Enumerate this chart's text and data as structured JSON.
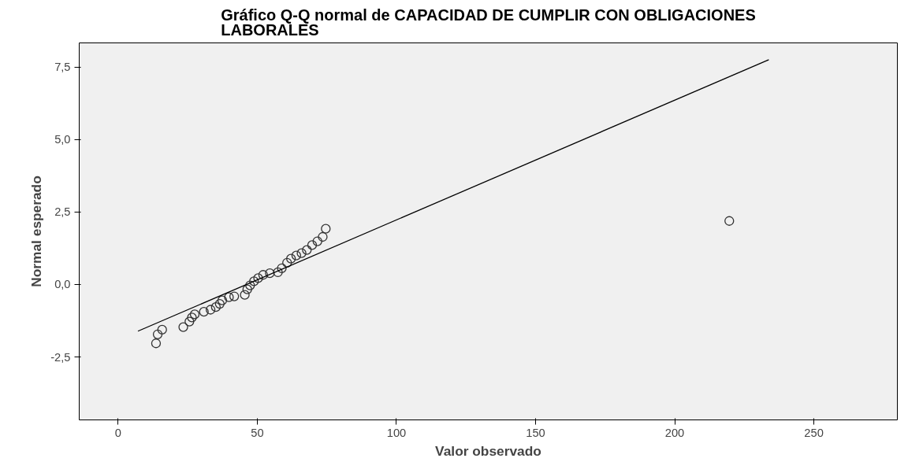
{
  "chart_data": {
    "type": "scatter",
    "title": "Gráfico Q-Q normal de CAPACIDAD DE CUMPLIR CON OBLIGACIONES\nLABORALES",
    "xlabel": "Valor observado",
    "ylabel": "Normal esperado",
    "grid": false,
    "xlim": [
      -14,
      280
    ],
    "ylim": [
      -4.67,
      8.33
    ],
    "xticks": [
      0,
      50,
      100,
      150,
      200,
      250
    ],
    "yticks": [
      {
        "value": -2.5,
        "label": "-2,5"
      },
      {
        "value": 0,
        "label": "0,0"
      },
      {
        "value": 2.5,
        "label": "2,5"
      },
      {
        "value": 5,
        "label": "5,0"
      },
      {
        "value": 7.5,
        "label": "7,5"
      }
    ],
    "series": [
      {
        "marker": "circle",
        "color": "#333333",
        "x": [
          13.6,
          14.2,
          15.8,
          23.4,
          25.6,
          26.5,
          27.5,
          30.8,
          33.2,
          35.1,
          36.5,
          37.4,
          39.8,
          41.7,
          45.5,
          46.4,
          47.4,
          48.8,
          50.3,
          52.1,
          54.5,
          57.4,
          58.8,
          60.7,
          62.1,
          64.0,
          65.9,
          67.8,
          69.7,
          71.6,
          73.5,
          74.6,
          219.6
        ],
        "values": [
          -2.03,
          -1.72,
          -1.56,
          -1.47,
          -1.28,
          -1.14,
          -1.03,
          -0.94,
          -0.87,
          -0.78,
          -0.67,
          -0.55,
          -0.44,
          -0.41,
          -0.36,
          -0.17,
          -0.03,
          0.11,
          0.22,
          0.33,
          0.39,
          0.42,
          0.56,
          0.75,
          0.89,
          1.0,
          1.08,
          1.19,
          1.36,
          1.49,
          1.64,
          1.92,
          2.19
        ]
      },
      {
        "type": "line",
        "color": "#000000",
        "x": [
          7.1,
          233.8
        ],
        "values": [
          -1.61,
          7.75
        ]
      }
    ]
  }
}
